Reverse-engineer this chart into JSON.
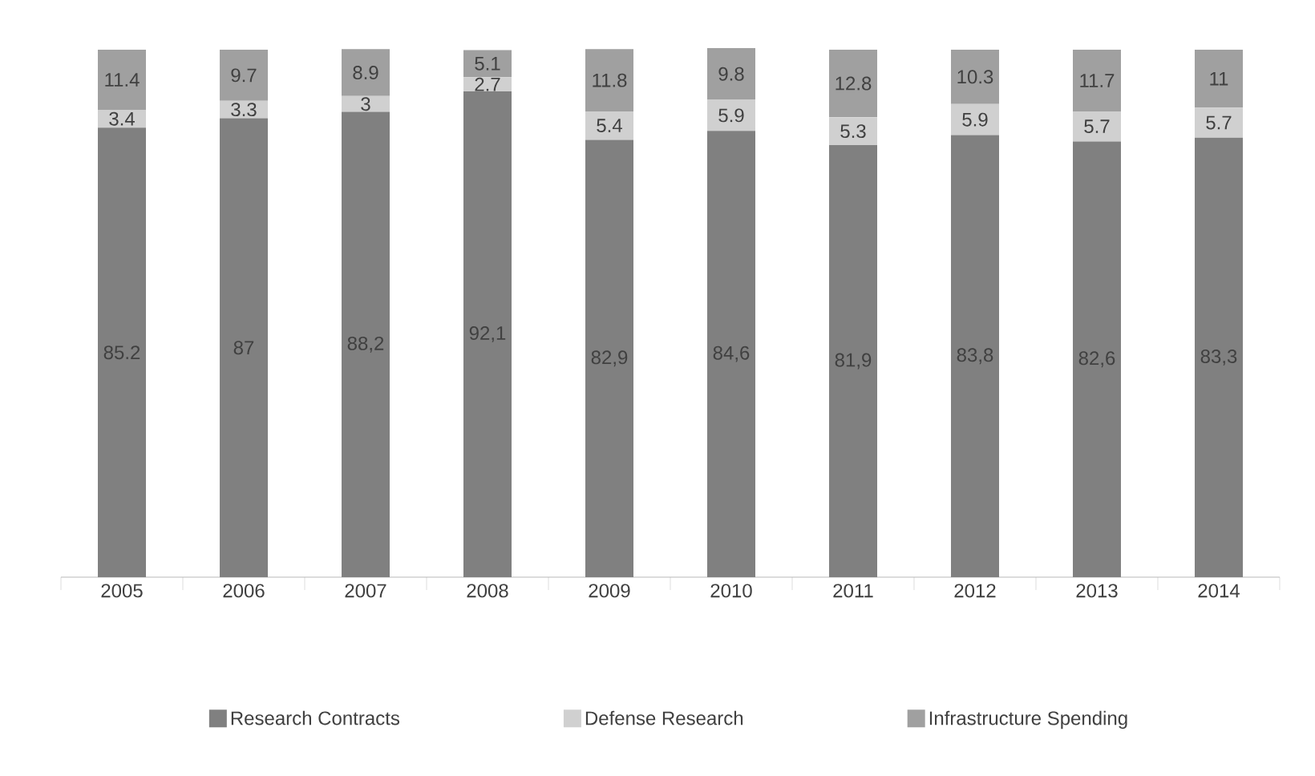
{
  "chart_data": {
    "type": "bar",
    "stacked": true,
    "legend": "bottom",
    "data_labels": true,
    "categories": [
      "2005",
      "2006",
      "2007",
      "2008",
      "2009",
      "2010",
      "2011",
      "2012",
      "2013",
      "2014"
    ],
    "series": [
      {
        "name": "Research Contracts",
        "color": "#808080",
        "values": [
          85.2,
          87,
          88.2,
          92.1,
          82.9,
          84.6,
          81.9,
          83.8,
          82.6,
          83.3
        ],
        "value_labels": [
          "85.2",
          "87",
          "88,2",
          "92,1",
          "82,9",
          "84,6",
          "81,9",
          "83,8",
          "82,6",
          "83,3"
        ]
      },
      {
        "name": "Defense Research",
        "color": "#d0d0d0",
        "values": [
          3.4,
          3.3,
          3,
          2.7,
          5.4,
          5.9,
          5.3,
          5.9,
          5.7,
          5.7
        ],
        "value_labels": [
          "3.4",
          "3.3",
          "3",
          "2.7",
          "5.4",
          "5.9",
          "5.3",
          "5.9",
          "5.7",
          "5.7"
        ]
      },
      {
        "name": "Infrastructure Spending",
        "color": "#a0a0a0",
        "values": [
          11.4,
          9.7,
          8.9,
          5.1,
          11.8,
          9.8,
          12.8,
          10.3,
          11.7,
          11
        ],
        "value_labels": [
          "11.4",
          "9.7",
          "8.9",
          "5.1",
          "11.8",
          "9.8",
          "12.8",
          "10.3",
          "11.7",
          "11"
        ]
      }
    ]
  }
}
